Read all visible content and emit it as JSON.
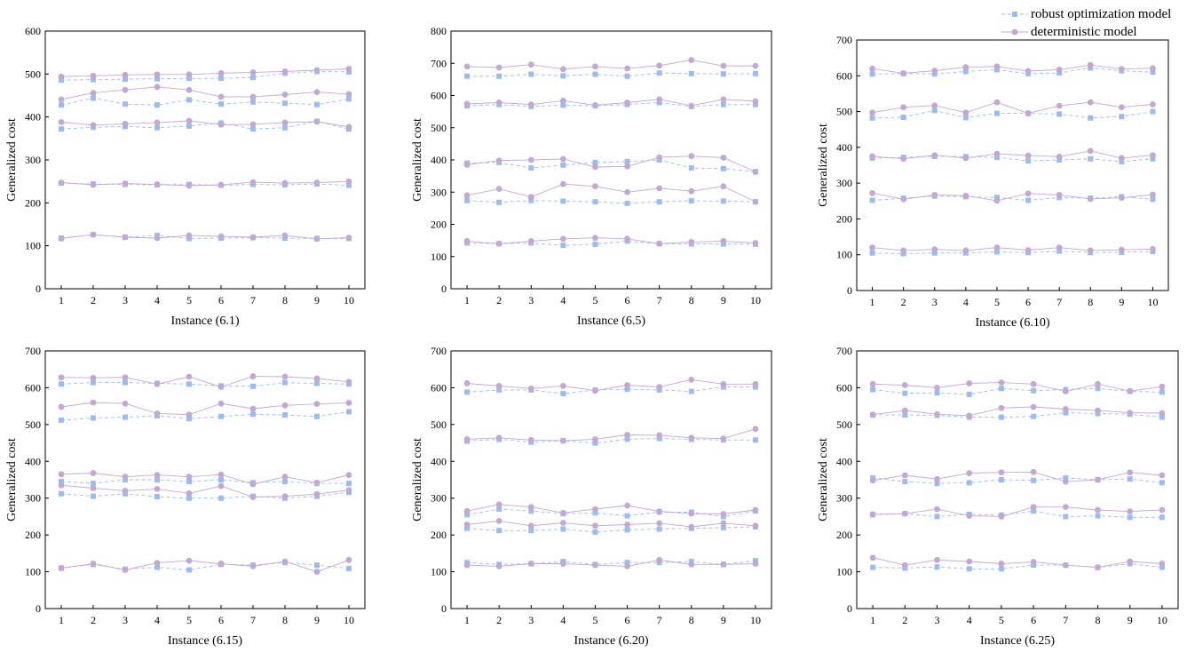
{
  "colors": {
    "robust": "#9cbcf0",
    "deterministic": "#c3a8d4",
    "axis": "#000000"
  },
  "legend": {
    "robust_label": "robust optimization model",
    "deterministic_label": "deterministic model"
  },
  "chart_data": [
    {
      "type": "line",
      "xlabel": "Instance (6.1)",
      "ylabel": "Generalized cost",
      "x": [
        1,
        2,
        3,
        4,
        5,
        6,
        7,
        8,
        9,
        10
      ],
      "ylim": [
        0,
        600
      ],
      "yticks": [
        0,
        100,
        200,
        300,
        400,
        500,
        600
      ],
      "series": [
        {
          "name": "robust optimization model",
          "groups": [
            [
              118,
              126,
              120,
              124,
              117,
              118,
              119,
              118,
              117,
              117
            ],
            [
              246,
              244,
              243,
              242,
              243,
              241,
              243,
              242,
              244,
              241
            ],
            [
              372,
              376,
              378,
              375,
              379,
              386,
              372,
              375,
              390,
              372
            ],
            [
              428,
              444,
              430,
              428,
              440,
              430,
              435,
              432,
              429,
              442
            ],
            [
              486,
              487,
              488,
              489,
              490,
              490,
              492,
              502,
              506,
              505
            ]
          ]
        },
        {
          "name": "deterministic model",
          "groups": [
            [
              117,
              126,
              120,
              118,
              124,
              122,
              120,
              124,
              116,
              119
            ],
            [
              247,
              242,
              245,
              243,
              240,
              242,
              248,
              246,
              247,
              250
            ],
            [
              388,
              381,
              384,
              387,
              391,
              382,
              383,
              387,
              389,
              377
            ],
            [
              441,
              456,
              463,
              470,
              463,
              447,
              447,
              452,
              458,
              453
            ],
            [
              494,
              496,
              498,
              499,
              499,
              502,
              504,
              506,
              509,
              512
            ]
          ]
        }
      ]
    },
    {
      "type": "line",
      "xlabel": "Instance (6.5)",
      "ylabel": "Generalized cost",
      "x": [
        1,
        2,
        3,
        4,
        5,
        6,
        7,
        8,
        9,
        10
      ],
      "ylim": [
        0,
        800
      ],
      "yticks": [
        0,
        100,
        200,
        300,
        400,
        500,
        600,
        700,
        800
      ],
      "series": [
        {
          "name": "robust optimization model",
          "groups": [
            [
              142,
              140,
              142,
              135,
              138,
              148,
              140,
              139,
              139,
              138
            ],
            [
              274,
              268,
              274,
              272,
              270,
              265,
              270,
              273,
              272,
              270
            ],
            [
              390,
              392,
              375,
              384,
              392,
              395,
              400,
              375,
              373,
              363
            ],
            [
              568,
              572,
              566,
              570,
              568,
              572,
              578,
              566,
              572,
              572
            ],
            [
              660,
              660,
              666,
              661,
              666,
              660,
              670,
              668,
              667,
              668
            ]
          ]
        },
        {
          "name": "deterministic model",
          "groups": [
            [
              148,
              140,
              148,
              155,
              158,
              155,
              140,
              145,
              148,
              142
            ],
            [
              290,
              310,
              285,
              325,
              318,
              300,
              312,
              303,
              318,
              270
            ],
            [
              385,
              398,
              400,
              403,
              378,
              380,
              408,
              412,
              407,
              363
            ],
            [
              574,
              578,
              572,
              584,
              570,
              578,
              588,
              568,
              588,
              582
            ],
            [
              690,
              687,
              696,
              682,
              690,
              684,
              693,
              710,
              692,
              692
            ]
          ]
        }
      ]
    },
    {
      "type": "line",
      "xlabel": "Instance (6.10)",
      "ylabel": "Generalized cost",
      "x": [
        1,
        2,
        3,
        4,
        5,
        6,
        7,
        8,
        9,
        10
      ],
      "ylim": [
        0,
        700
      ],
      "yticks": [
        0,
        100,
        200,
        300,
        400,
        500,
        600,
        700
      ],
      "series": [
        {
          "name": "robust optimization model",
          "groups": [
            [
              105,
              103,
              105,
              105,
              108,
              106,
              110,
              106,
              107,
              109
            ],
            [
              252,
              258,
              264,
              262,
              260,
              252,
              260,
              258,
              262,
              255
            ],
            [
              370,
              372,
              375,
              374,
              372,
              362,
              365,
              368,
              360,
              368
            ],
            [
              482,
              484,
              503,
              483,
              495,
              495,
              493,
              482,
              486,
              500
            ],
            [
              605,
              606,
              605,
              612,
              617,
              606,
              608,
              622,
              614,
              610
            ]
          ]
        },
        {
          "name": "deterministic model",
          "groups": [
            [
              120,
              112,
              115,
              112,
              120,
              113,
              120,
              112,
              114,
              116
            ],
            [
              272,
              255,
              267,
              265,
              251,
              271,
              267,
              256,
              259,
              268
            ],
            [
              375,
              368,
              378,
              370,
              382,
              377,
              374,
              390,
              370,
              378
            ],
            [
              497,
              512,
              517,
              497,
              526,
              495,
              516,
              526,
              512,
              520
            ],
            [
              620,
              607,
              614,
              624,
              626,
              613,
              617,
              630,
              619,
              621
            ]
          ]
        }
      ]
    },
    {
      "type": "line",
      "xlabel": "Instance (6.15)",
      "ylabel": "Generalized cost",
      "x": [
        1,
        2,
        3,
        4,
        5,
        6,
        7,
        8,
        9,
        10
      ],
      "ylim": [
        0,
        700
      ],
      "yticks": [
        0,
        100,
        200,
        300,
        400,
        500,
        600,
        700
      ],
      "series": [
        {
          "name": "robust optimization model",
          "groups": [
            [
              110,
              120,
              107,
              112,
              105,
              120,
              118,
              125,
              118,
              109
            ],
            [
              312,
              305,
              312,
              304,
              300,
              300,
              305,
              300,
              305,
              316
            ],
            [
              345,
              340,
              350,
              350,
              345,
              350,
              342,
              345,
              340,
              340
            ],
            [
              512,
              518,
              520,
              524,
              516,
              522,
              528,
              526,
              522,
              535
            ],
            [
              610,
              614,
              614,
              612,
              610,
              605,
              604,
              614,
              612,
              610
            ]
          ]
        },
        {
          "name": "deterministic model",
          "groups": [
            [
              110,
              122,
              105,
              124,
              130,
              122,
              115,
              128,
              100,
              132
            ],
            [
              335,
              327,
              320,
              325,
              313,
              333,
              303,
              305,
              311,
              322
            ],
            [
              365,
              368,
              358,
              363,
              358,
              364,
              338,
              358,
              342,
              363
            ],
            [
              548,
              560,
              557,
              530,
              527,
              557,
              543,
              552,
              556,
              559
            ],
            [
              628,
              627,
              628,
              610,
              630,
              602,
              631,
              630,
              625,
              616
            ]
          ]
        }
      ]
    },
    {
      "type": "line",
      "xlabel": "Instance (6.20)",
      "ylabel": "Generalized cost",
      "x": [
        1,
        2,
        3,
        4,
        5,
        6,
        7,
        8,
        9,
        10
      ],
      "ylim": [
        0,
        700
      ],
      "yticks": [
        0,
        100,
        200,
        300,
        400,
        500,
        600,
        700
      ],
      "series": [
        {
          "name": "robust optimization model",
          "groups": [
            [
              125,
              120,
              122,
              128,
              120,
              125,
              125,
              128,
              120,
              130
            ],
            [
              218,
              212,
              212,
              216,
              208,
              214,
              216,
              218,
              220,
              222
            ],
            [
              255,
              270,
              265,
              258,
              260,
              252,
              262,
              262,
              250,
              265
            ],
            [
              455,
              460,
              452,
              456,
              450,
              460,
              462,
              460,
              458,
              458
            ],
            [
              588,
              594,
              594,
              584,
              594,
              596,
              594,
              590,
              602,
              602
            ]
          ]
        },
        {
          "name": "deterministic model",
          "groups": [
            [
              118,
              115,
              122,
              122,
              118,
              115,
              132,
              120,
              120,
              122
            ],
            [
              228,
              238,
              225,
              233,
              225,
              228,
              232,
              222,
              232,
              225
            ],
            [
              265,
              283,
              276,
              260,
              270,
              280,
              264,
              258,
              257,
              268
            ],
            [
              460,
              464,
              458,
              456,
              460,
              472,
              471,
              464,
              462,
              488
            ],
            [
              612,
              605,
              598,
              605,
              592,
              607,
              602,
              622,
              610,
              610
            ]
          ]
        }
      ]
    },
    {
      "type": "line",
      "xlabel": "Instance (6.25)",
      "ylabel": "Generalized cost",
      "x": [
        1,
        2,
        3,
        4,
        5,
        6,
        7,
        8,
        9,
        10
      ],
      "ylim": [
        0,
        700
      ],
      "yticks": [
        0,
        100,
        200,
        300,
        400,
        500,
        600,
        700
      ],
      "series": [
        {
          "name": "robust optimization model",
          "groups": [
            [
              112,
              110,
              113,
              108,
              108,
              118,
              118,
              112,
              122,
              112
            ],
            [
              255,
              258,
              250,
              256,
              254,
              265,
              250,
              252,
              248,
              248
            ],
            [
              355,
              345,
              340,
              342,
              350,
              348,
              355,
              350,
              352,
              342
            ],
            [
              526,
              526,
              525,
              520,
              520,
              522,
              532,
              530,
              528,
              520
            ],
            [
              595,
              585,
              586,
              582,
              598,
              592,
              595,
              598,
              590,
              588
            ]
          ]
        },
        {
          "name": "deterministic model",
          "groups": [
            [
              138,
              118,
              132,
              128,
              122,
              127,
              118,
              112,
              128,
              122
            ],
            [
              256,
              258,
              270,
              252,
              250,
              276,
              276,
              268,
              264,
              268
            ],
            [
              348,
              362,
              352,
              368,
              370,
              371,
              345,
              350,
              370,
              362
            ],
            [
              527,
              538,
              528,
              524,
              545,
              548,
              542,
              538,
              532,
              531
            ],
            [
              610,
              607,
              600,
              612,
              614,
              610,
              590,
              610,
              591,
              603
            ]
          ]
        }
      ]
    }
  ]
}
